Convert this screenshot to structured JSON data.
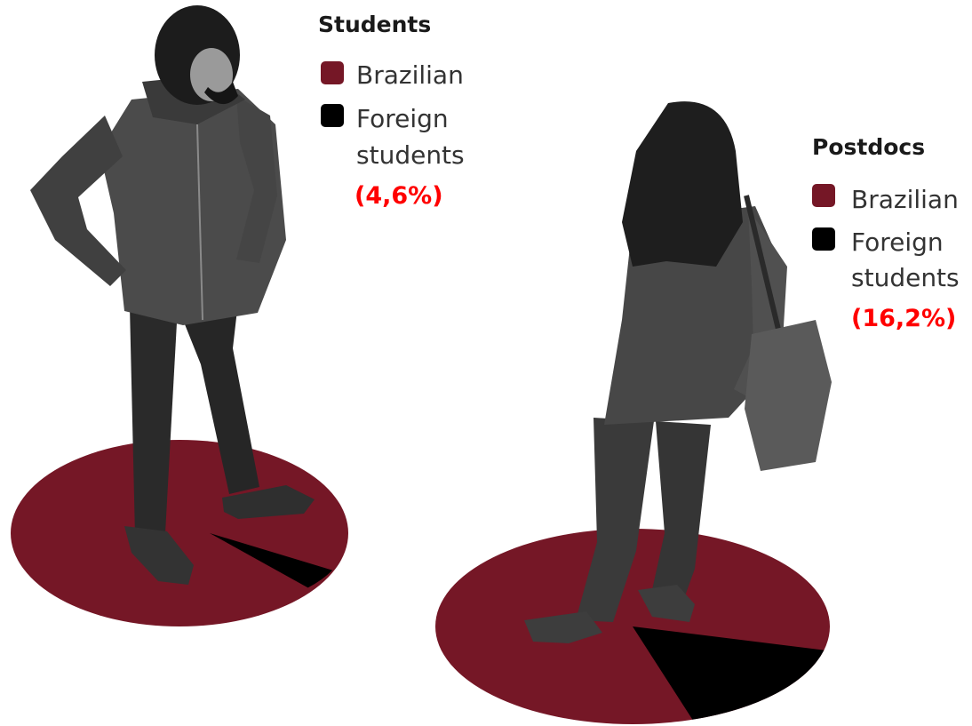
{
  "colors": {
    "brazilian": "#751726",
    "foreign": "#000000",
    "highlight": "#ff0000"
  },
  "chart_data": [
    {
      "type": "pie",
      "title": "Students",
      "slices": [
        {
          "label": "Brazilian",
          "value": 95.4
        },
        {
          "label": "Foreign students",
          "value": 4.6
        }
      ],
      "legend": [
        {
          "label": "Brazilian",
          "color": "#751726"
        },
        {
          "label": "Foreign students",
          "color": "#000000",
          "value_label": "(4,6%)"
        }
      ],
      "legend_position": "top-right"
    },
    {
      "type": "pie",
      "title": "Postdocs",
      "slices": [
        {
          "label": "Brazilian",
          "value": 83.8
        },
        {
          "label": "Foreign students",
          "value": 16.2
        }
      ],
      "legend": [
        {
          "label": "Brazilian",
          "color": "#751726"
        },
        {
          "label": "Foreign students",
          "color": "#000000",
          "value_label": "(16,2%)"
        }
      ],
      "legend_position": "top-right"
    }
  ]
}
